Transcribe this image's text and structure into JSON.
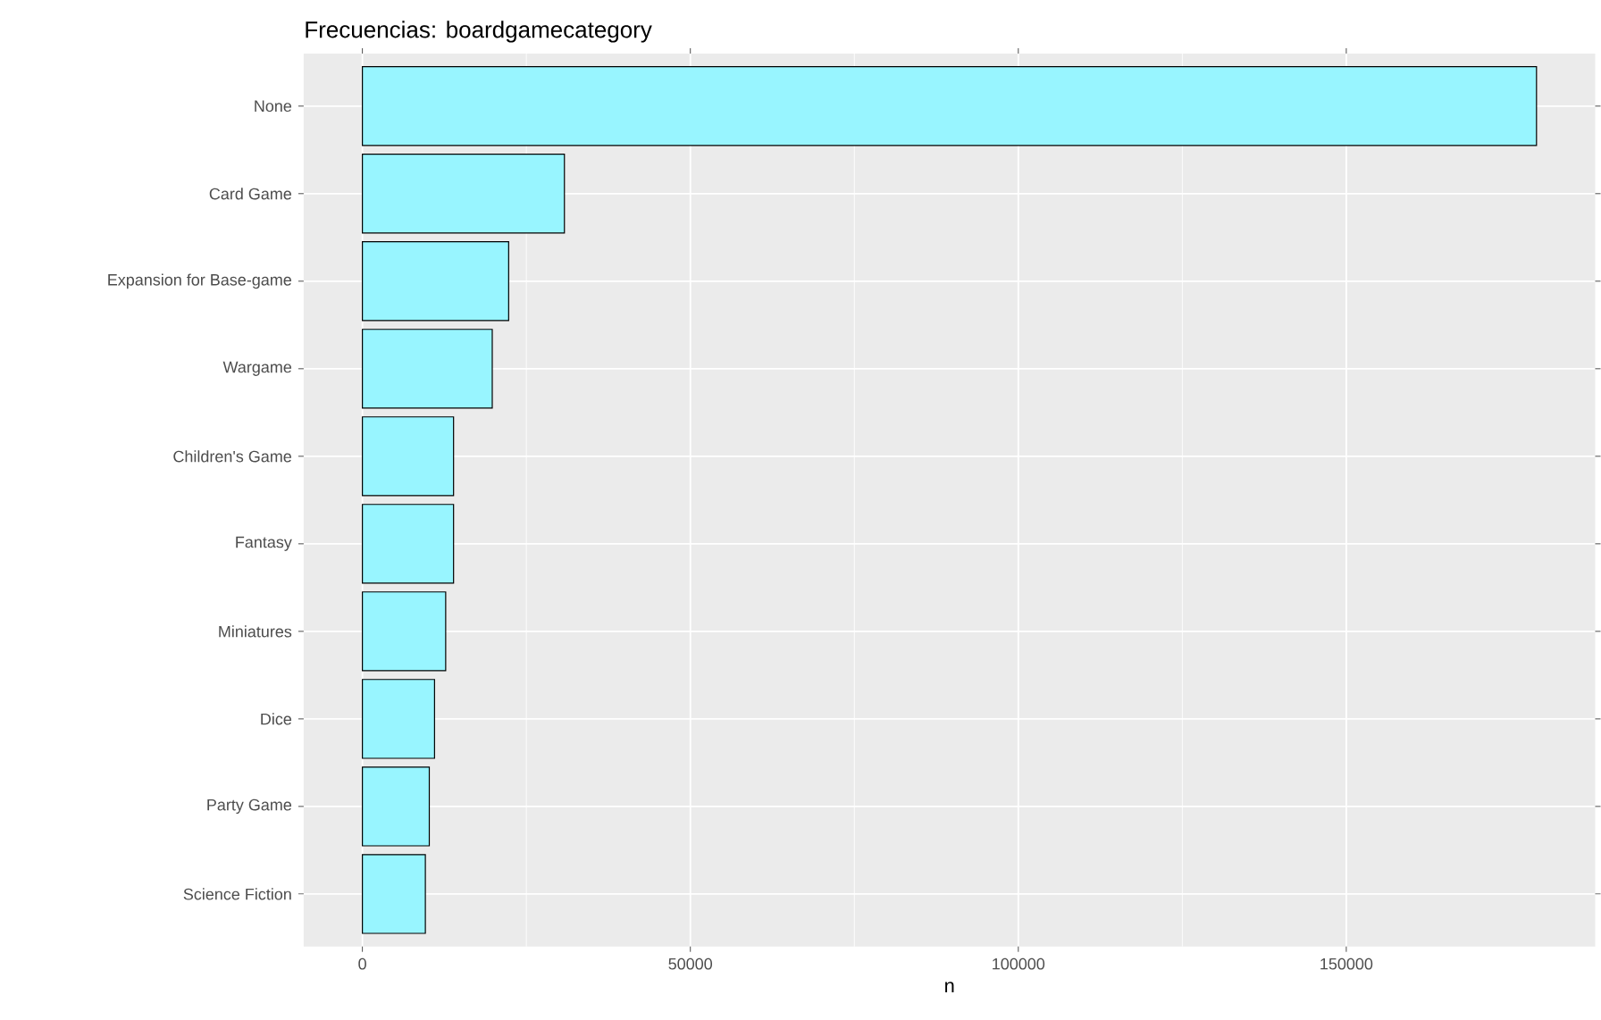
{
  "chart_data": {
    "type": "bar",
    "orientation": "horizontal",
    "title": "Frecuencias: boardgamecategory",
    "xlabel": "n",
    "categories": [
      "None",
      "Card Game",
      "Expansion for Base-game",
      "Wargame",
      "Children's Game",
      "Fantasy",
      "Miniatures",
      "Dice",
      "Party Game",
      "Science Fiction"
    ],
    "values": [
      179000,
      30800,
      22300,
      19800,
      13900,
      13900,
      12700,
      11000,
      10200,
      9600
    ],
    "color": "#98f5ff",
    "xlim": [
      -8950,
      187950
    ],
    "xticks": [
      0,
      50000,
      100000,
      150000
    ],
    "grid": true
  }
}
